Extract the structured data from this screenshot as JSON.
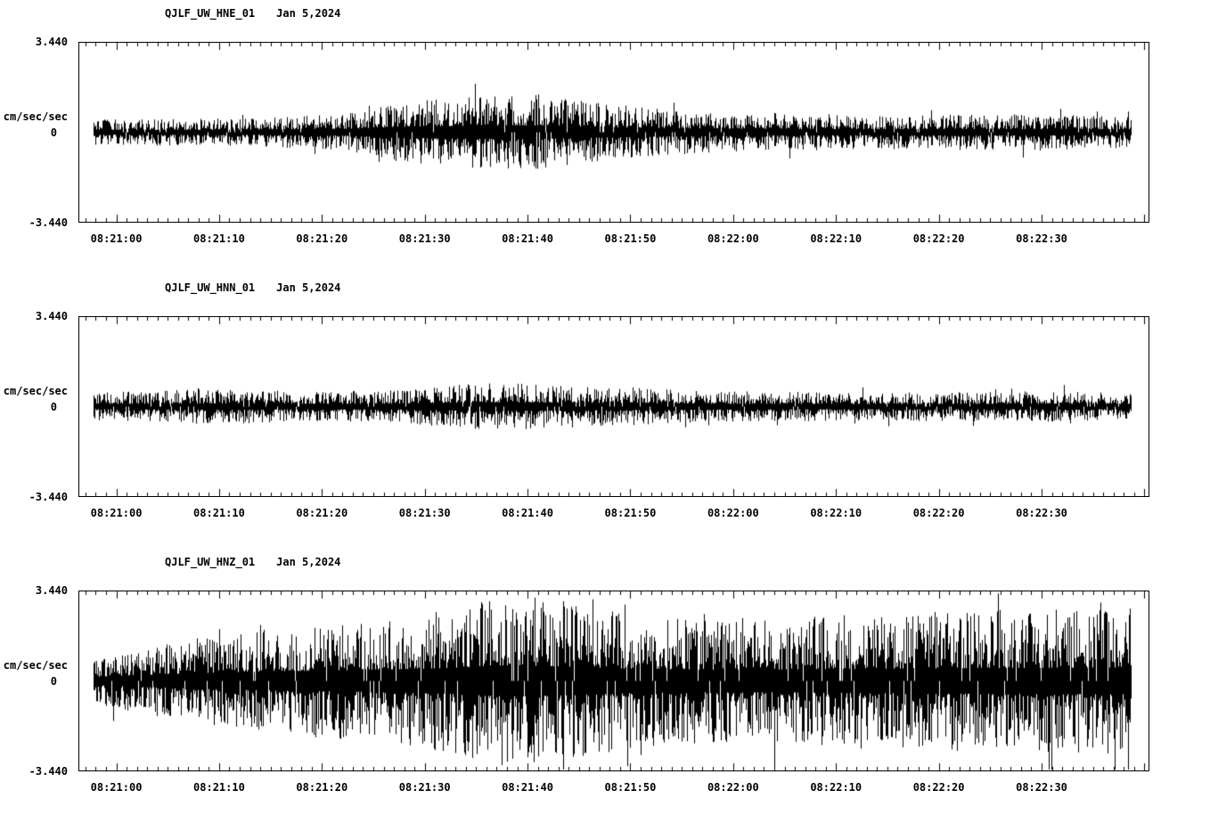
{
  "page": {
    "background": "#ffffff",
    "text_color": "#000000"
  },
  "chart_data": [
    {
      "type": "line",
      "title": "QJLF_UW_HNE_01",
      "date_label": "Jan 5,2024",
      "ylabel": "cm/sec/sec",
      "ylim": [
        -3.44,
        3.44
      ],
      "ytick_labels": [
        "3.440",
        "0",
        "-3.440"
      ],
      "x_tick_labels": [
        "08:21:00",
        "08:21:10",
        "08:21:20",
        "08:21:30",
        "08:21:40",
        "08:21:50",
        "08:22:00",
        "08:22:10",
        "08:22:20",
        "08:22:30"
      ],
      "x_major_interval_sec": 10,
      "x_axis_start_sec": -3.6,
      "x_axis_span_sec": 104,
      "grid": false,
      "legend": false,
      "trace_color": "#000000",
      "waveform_kind": "seismic-noise",
      "noise_seed": 11,
      "amplitude_envelope": [
        [
          0,
          0.5
        ],
        [
          0.15,
          0.55
        ],
        [
          0.24,
          0.7
        ],
        [
          0.3,
          1.2
        ],
        [
          0.36,
          1.4
        ],
        [
          0.42,
          1.5
        ],
        [
          0.48,
          1.2
        ],
        [
          0.55,
          0.9
        ],
        [
          0.65,
          0.7
        ],
        [
          0.75,
          0.65
        ],
        [
          0.85,
          0.7
        ],
        [
          1,
          0.65
        ]
      ]
    },
    {
      "type": "line",
      "title": "QJLF_UW_HNN_01",
      "date_label": "Jan 5,2024",
      "ylabel": "cm/sec/sec",
      "ylim": [
        -3.44,
        3.44
      ],
      "ytick_labels": [
        "3.440",
        "0",
        "-3.440"
      ],
      "x_tick_labels": [
        "08:21:00",
        "08:21:10",
        "08:21:20",
        "08:21:30",
        "08:21:40",
        "08:21:50",
        "08:22:00",
        "08:22:10",
        "08:22:20",
        "08:22:30"
      ],
      "x_major_interval_sec": 10,
      "x_axis_start_sec": -3.6,
      "x_axis_span_sec": 104,
      "grid": false,
      "legend": false,
      "trace_color": "#000000",
      "waveform_kind": "seismic-noise",
      "noise_seed": 22,
      "amplitude_envelope": [
        [
          0,
          0.55
        ],
        [
          0.12,
          0.7
        ],
        [
          0.2,
          0.6
        ],
        [
          0.3,
          0.65
        ],
        [
          0.38,
          0.95
        ],
        [
          0.44,
          0.85
        ],
        [
          0.52,
          0.75
        ],
        [
          0.62,
          0.6
        ],
        [
          0.75,
          0.55
        ],
        [
          0.9,
          0.6
        ],
        [
          1,
          0.55
        ]
      ]
    },
    {
      "type": "line",
      "title": "QJLF_UW_HNZ_01",
      "date_label": "Jan 5,2024",
      "ylabel": "cm/sec/sec",
      "ylim": [
        -3.44,
        3.44
      ],
      "ytick_labels": [
        "3.440",
        "0",
        "-3.440"
      ],
      "x_tick_labels": [
        "08:21:00",
        "08:21:10",
        "08:21:20",
        "08:21:30",
        "08:21:40",
        "08:21:50",
        "08:22:00",
        "08:22:10",
        "08:22:20",
        "08:22:30"
      ],
      "x_major_interval_sec": 10,
      "x_axis_start_sec": -3.6,
      "x_axis_span_sec": 104,
      "grid": false,
      "legend": false,
      "trace_color": "#000000",
      "waveform_kind": "seismic-noise",
      "noise_seed": 33,
      "amplitude_envelope": [
        [
          0,
          0.9
        ],
        [
          0.05,
          1.3
        ],
        [
          0.1,
          1.7
        ],
        [
          0.18,
          2.1
        ],
        [
          0.27,
          2.4
        ],
        [
          0.34,
          2.8
        ],
        [
          0.4,
          3.4
        ],
        [
          0.46,
          3.1
        ],
        [
          0.52,
          2.6
        ],
        [
          0.6,
          2.4
        ],
        [
          0.68,
          2.5
        ],
        [
          0.78,
          2.7
        ],
        [
          0.88,
          2.8
        ],
        [
          1,
          2.9
        ]
      ]
    }
  ]
}
